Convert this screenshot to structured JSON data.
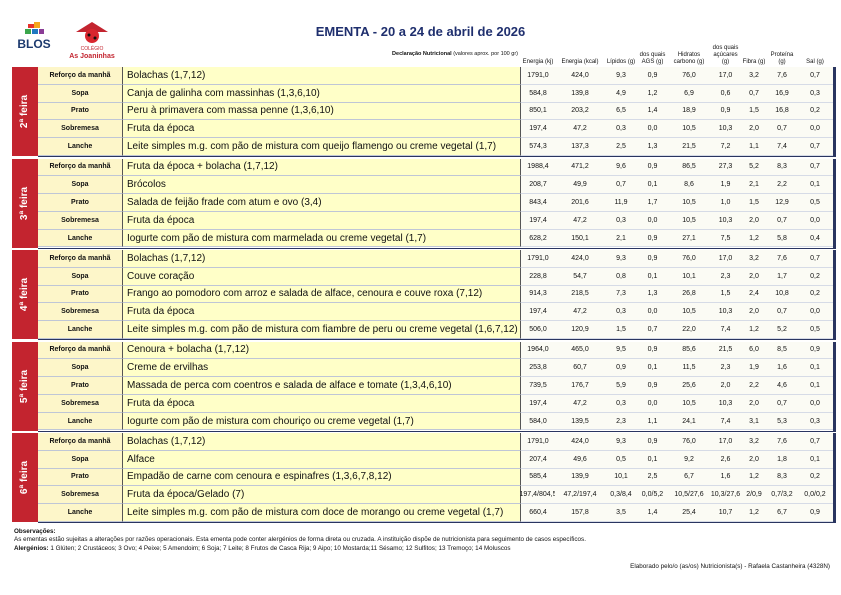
{
  "logo": {
    "brand": "BLOS",
    "school_top": "COLÉGIO",
    "school_name": "As Joaninhas"
  },
  "header": {
    "title": "EMENTA - 20 a 24 de abril de 2026",
    "declaration_label": "Declaração Nutricional",
    "declaration_note": "(valores aprox. por 100 gr)",
    "columns": [
      "Energia (kj)",
      "Energia (kcal)",
      "Lípidos (g)",
      "dos quais AGS (g)",
      "Hidratos carbono (g)",
      "dos quais açúcares (g)",
      "Fibra (g)",
      "Proteína (g)",
      "Sal (g)"
    ]
  },
  "days": [
    {
      "label": "2ª feira",
      "meals": [
        {
          "meal": "Reforço da manhã",
          "dish": "Bolachas (1,7,12)",
          "values": [
            "1791,0",
            "424,0",
            "9,3",
            "0,9",
            "76,0",
            "17,0",
            "3,2",
            "7,6",
            "0,7"
          ]
        },
        {
          "meal": "Sopa",
          "dish": "Canja de galinha com massinhas (1,3,6,10)",
          "values": [
            "584,8",
            "139,8",
            "4,9",
            "1,2",
            "6,9",
            "0,6",
            "0,7",
            "16,9",
            "0,3"
          ]
        },
        {
          "meal": "Prato",
          "dish": "Peru à primavera com massa penne (1,3,6,10)",
          "values": [
            "850,1",
            "203,2",
            "6,5",
            "1,4",
            "18,9",
            "0,9",
            "1,5",
            "16,8",
            "0,2"
          ]
        },
        {
          "meal": "Sobremesa",
          "dish": "Fruta da época",
          "values": [
            "197,4",
            "47,2",
            "0,3",
            "0,0",
            "10,5",
            "10,3",
            "2,0",
            "0,7",
            "0,0"
          ]
        },
        {
          "meal": "Lanche",
          "dish": "Leite simples m.g. com pão de mistura com queijo flamengo ou creme vegetal (1,7)",
          "values": [
            "574,3",
            "137,3",
            "2,5",
            "1,3",
            "21,5",
            "7,2",
            "1,1",
            "7,4",
            "0,7"
          ]
        }
      ]
    },
    {
      "label": "3ª feira",
      "meals": [
        {
          "meal": "Reforço da manhã",
          "dish": "Fruta da época + bolacha (1,7,12)",
          "values": [
            "1988,4",
            "471,2",
            "9,6",
            "0,9",
            "86,5",
            "27,3",
            "5,2",
            "8,3",
            "0,7"
          ]
        },
        {
          "meal": "Sopa",
          "dish": "Brócolos",
          "values": [
            "208,7",
            "49,9",
            "0,7",
            "0,1",
            "8,6",
            "1,9",
            "2,1",
            "2,2",
            "0,1"
          ]
        },
        {
          "meal": "Prato",
          "dish": "Salada de feijão frade com atum e ovo (3,4)",
          "values": [
            "843,4",
            "201,6",
            "11,9",
            "1,7",
            "10,5",
            "1,0",
            "1,5",
            "12,9",
            "0,5"
          ]
        },
        {
          "meal": "Sobremesa",
          "dish": "Fruta da época",
          "values": [
            "197,4",
            "47,2",
            "0,3",
            "0,0",
            "10,5",
            "10,3",
            "2,0",
            "0,7",
            "0,0"
          ]
        },
        {
          "meal": "Lanche",
          "dish": "Iogurte com pão de mistura com marmelada ou creme vegetal (1,7)",
          "values": [
            "628,2",
            "150,1",
            "2,1",
            "0,9",
            "27,1",
            "7,5",
            "1,2",
            "5,8",
            "0,4"
          ]
        }
      ]
    },
    {
      "label": "4ª feira",
      "meals": [
        {
          "meal": "Reforço da manhã",
          "dish": "Bolachas (1,7,12)",
          "values": [
            "1791,0",
            "424,0",
            "9,3",
            "0,9",
            "76,0",
            "17,0",
            "3,2",
            "7,6",
            "0,7"
          ]
        },
        {
          "meal": "Sopa",
          "dish": "Couve coração",
          "values": [
            "228,8",
            "54,7",
            "0,8",
            "0,1",
            "10,1",
            "2,3",
            "2,0",
            "1,7",
            "0,2"
          ]
        },
        {
          "meal": "Prato",
          "dish": "Frango ao pomodoro com arroz e salada de alface, cenoura e couve roxa (7,12)",
          "values": [
            "914,3",
            "218,5",
            "7,3",
            "1,3",
            "26,8",
            "1,5",
            "2,4",
            "10,8",
            "0,2"
          ]
        },
        {
          "meal": "Sobremesa",
          "dish": "Fruta da época",
          "values": [
            "197,4",
            "47,2",
            "0,3",
            "0,0",
            "10,5",
            "10,3",
            "2,0",
            "0,7",
            "0,0"
          ]
        },
        {
          "meal": "Lanche",
          "dish": "Leite simples m.g. com pão de mistura com fiambre de peru ou creme vegetal (1,6,7,12)",
          "values": [
            "506,0",
            "120,9",
            "1,5",
            "0,7",
            "22,0",
            "7,4",
            "1,2",
            "5,2",
            "0,5"
          ]
        }
      ]
    },
    {
      "label": "5ª feira",
      "meals": [
        {
          "meal": "Reforço da manhã",
          "dish": "Cenoura + bolacha (1,7,12)",
          "values": [
            "1964,0",
            "465,0",
            "9,5",
            "0,9",
            "85,6",
            "21,5",
            "6,0",
            "8,5",
            "0,9"
          ]
        },
        {
          "meal": "Sopa",
          "dish": "Creme de ervilhas",
          "values": [
            "253,8",
            "60,7",
            "0,9",
            "0,1",
            "11,5",
            "2,3",
            "1,9",
            "1,6",
            "0,1"
          ]
        },
        {
          "meal": "Prato",
          "dish": "Massada de perca com coentros e salada de alface e tomate (1,3,4,6,10)",
          "values": [
            "739,5",
            "176,7",
            "5,9",
            "0,9",
            "25,6",
            "2,0",
            "2,2",
            "4,6",
            "0,1"
          ]
        },
        {
          "meal": "Sobremesa",
          "dish": "Fruta da época",
          "values": [
            "197,4",
            "47,2",
            "0,3",
            "0,0",
            "10,5",
            "10,3",
            "2,0",
            "0,7",
            "0,0"
          ]
        },
        {
          "meal": "Lanche",
          "dish": "Iogurte com pão de mistura com chouriço ou creme vegetal (1,7)",
          "values": [
            "584,0",
            "139,5",
            "2,3",
            "1,1",
            "24,1",
            "7,4",
            "3,1",
            "5,3",
            "0,3"
          ]
        }
      ]
    },
    {
      "label": "6ª feira",
      "meals": [
        {
          "meal": "Reforço da manhã",
          "dish": "Bolachas (1,7,12)",
          "values": [
            "1791,0",
            "424,0",
            "9,3",
            "0,9",
            "76,0",
            "17,0",
            "3,2",
            "7,6",
            "0,7"
          ]
        },
        {
          "meal": "Sopa",
          "dish": "Alface",
          "values": [
            "207,4",
            "49,6",
            "0,5",
            "0,1",
            "9,2",
            "2,6",
            "2,0",
            "1,8",
            "0,1"
          ]
        },
        {
          "meal": "Prato",
          "dish": "Empadão de carne com cenoura e espinafres (1,3,6,7,8,12)",
          "values": [
            "585,4",
            "139,9",
            "10,1",
            "2,5",
            "6,7",
            "1,6",
            "1,2",
            "8,3",
            "0,2"
          ]
        },
        {
          "meal": "Sobremesa",
          "dish": "Fruta da época/Gelado (7)",
          "values": [
            "197,4/804,5",
            "47,2/197,4",
            "0,3/8,4",
            "0,0/5,2",
            "10,5/27,6",
            "10,3/27,6",
            "2/0,9",
            "0,7/3,2",
            "0,0/0,2"
          ]
        },
        {
          "meal": "Lanche",
          "dish": "Leite simples m.g. com pão de mistura com doce de morango ou creme vegetal (1,7)",
          "values": [
            "660,4",
            "157,8",
            "3,5",
            "1,4",
            "25,4",
            "10,7",
            "1,2",
            "6,7",
            "0,9"
          ]
        }
      ]
    }
  ],
  "footer": {
    "observations_label": "Observações:",
    "observations_text": "As ementas estão sujeitas a alterações por razões operacionais. Esta ementa pode conter alergénios de forma direta ou cruzada. A instituição dispõe de nutricionista para seguimento de casos específicos.",
    "allergens_label": "Alergénios:",
    "allergens_text": "1 Glúten; 2 Crustáceos; 3 Ovo; 4 Peixe; 5 Amendoim; 6 Soja; 7 Leite; 8 Frutos de Casca Rija; 9 Aipo; 10 Mostarda;11 Sésamo; 12 Sulfitos; 13 Tremoço; 14 Moluscos",
    "signature": "Elaborado pelo/o (as/os) Nutricionista(s) - Rafaela Castanheira (4328N)"
  }
}
